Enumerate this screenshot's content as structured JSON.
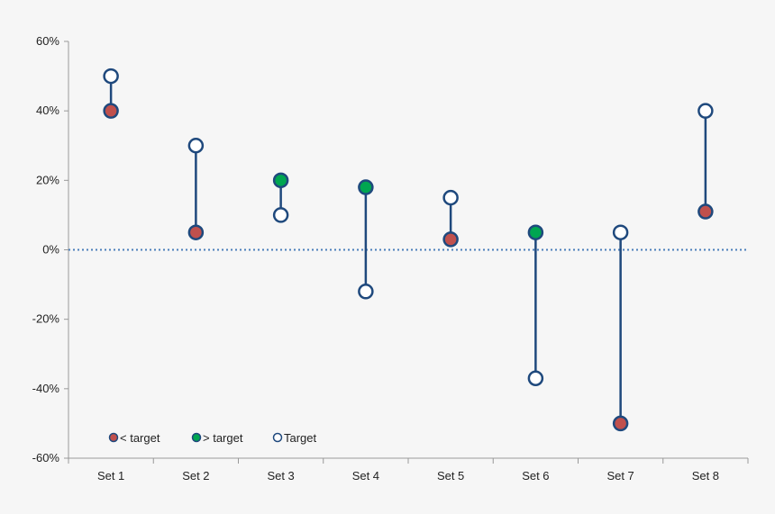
{
  "chart_data": {
    "type": "scatter",
    "categories": [
      "Set 1",
      "Set 2",
      "Set 3",
      "Set 4",
      "Set 5",
      "Set 6",
      "Set 7",
      "Set 8"
    ],
    "series": [
      {
        "name": "< target",
        "color": "#c0504d",
        "values": [
          40,
          5,
          null,
          null,
          3,
          null,
          -50,
          11
        ]
      },
      {
        "name": "> target",
        "color": "#00a651",
        "values": [
          null,
          null,
          20,
          18,
          null,
          5,
          null,
          null
        ]
      },
      {
        "name": "Target",
        "color": "#ffffff",
        "values": [
          50,
          30,
          10,
          -12,
          15,
          -37,
          5,
          40
        ]
      }
    ],
    "ylim": [
      -60,
      60
    ],
    "yticks": [
      -60,
      -40,
      -20,
      0,
      20,
      40,
      60
    ],
    "ytick_labels": [
      "-60%",
      "-40%",
      "-20%",
      "0%",
      "20%",
      "40%",
      "60%"
    ],
    "reference_line": 0,
    "grid": false,
    "legend_position": "bottom-left",
    "marker_outline_color": "#1f497d",
    "connector_color": "#1f497d",
    "reference_line_color": "#4a7ebb"
  }
}
